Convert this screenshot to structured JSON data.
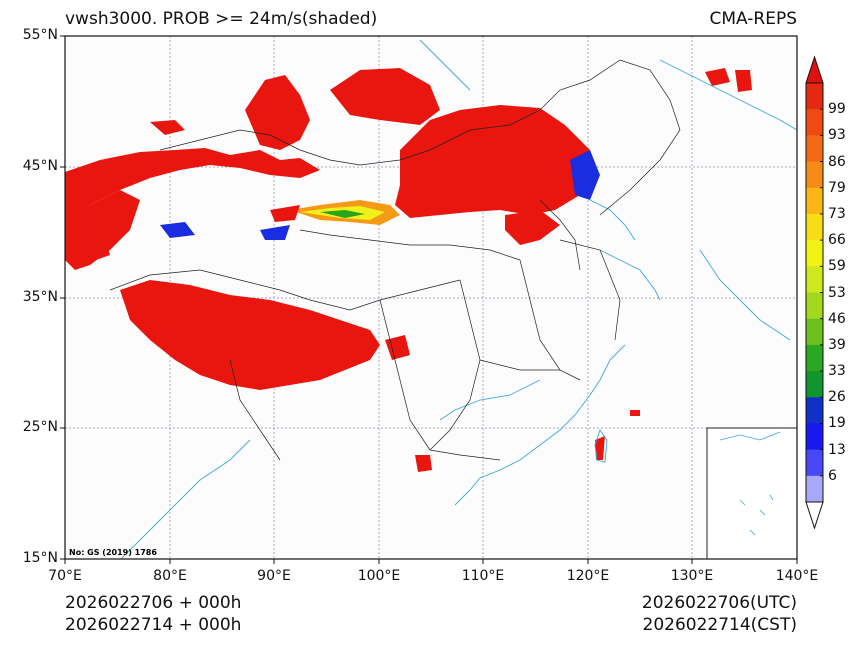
{
  "header": {
    "title_left": "vwsh3000. PROB >= 24m/s(shaded)",
    "title_right": "CMA-REPS"
  },
  "map": {
    "lat_labels": [
      "55°N",
      "45°N",
      "35°N",
      "25°N",
      "15°N"
    ],
    "lon_labels": [
      "70°E",
      "80°E",
      "90°E",
      "100°E",
      "110°E",
      "120°E",
      "130°E",
      "140°E"
    ],
    "note": "No: GS (2019) 1786",
    "colors": {
      "high": "#e8160f",
      "orange": "#f59a17",
      "yellow": "#f0f01c",
      "green": "#2aa51a",
      "blue": "#1a2ee0",
      "coast": "#3aa8d8",
      "border": "#222222"
    }
  },
  "colorbar": {
    "labels": [
      "99",
      "93",
      "86",
      "79",
      "73",
      "66",
      "59",
      "53",
      "46",
      "39",
      "33",
      "26",
      "19",
      "13",
      "6"
    ],
    "colors": [
      "#e52811",
      "#f04a12",
      "#f36a14",
      "#f68c17",
      "#fbb615",
      "#f8dc14",
      "#f2f213",
      "#cfe81c",
      "#a4d81e",
      "#6cc11f",
      "#2ca722",
      "#10962d",
      "#1030c8",
      "#1818f0",
      "#4848f8",
      "#a8a8f8"
    ]
  },
  "footer": {
    "left_line1": "2026022706  +  000h",
    "left_line2": "2026022714  +  000h",
    "right_line1": "2026022706(UTC)",
    "right_line2": "2026022714(CST)"
  }
}
